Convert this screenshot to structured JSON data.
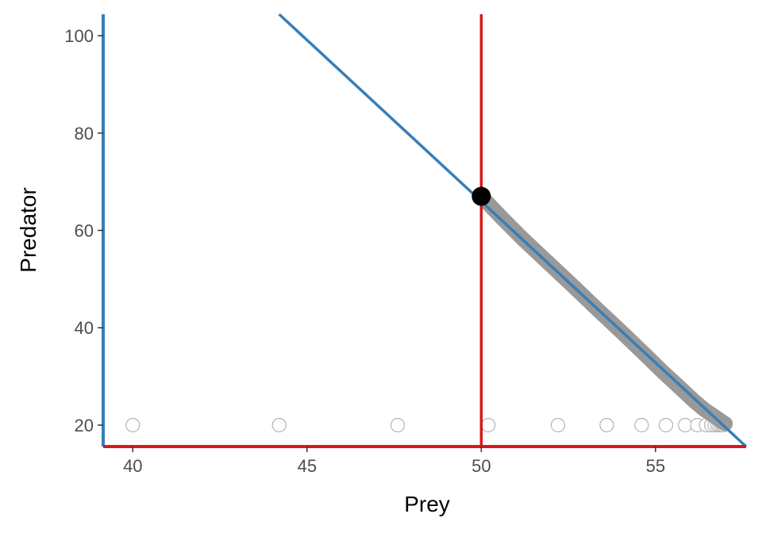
{
  "chart_data": {
    "type": "scatter",
    "title": "",
    "xlabel": "Prey",
    "ylabel": "Predator",
    "xlim": [
      39.15,
      57.6
    ],
    "ylim": [
      15.6,
      104.4
    ],
    "grid": false,
    "x_ticks": [
      40,
      45,
      50,
      55
    ],
    "y_ticks": [
      20,
      40,
      60,
      80,
      100
    ],
    "x_tick_labels": [
      "40",
      "45",
      "50",
      "55"
    ],
    "y_tick_labels": [
      "20",
      "40",
      "60",
      "80",
      "100"
    ],
    "colors": {
      "prey_nullcline": "#d7191c",
      "predator_nullcline": "#377eb8",
      "trajectory": "#999999",
      "equilibrium": "#000000",
      "open_points": "#b3b3b3"
    },
    "prey_nullcline": {
      "x": 50
    },
    "predator_nullcline": {
      "x": [
        44.2,
        57.6
      ],
      "y": [
        104.4,
        15.6
      ]
    },
    "trajectory": {
      "x": [
        50.0,
        50.6,
        51.2,
        51.9,
        52.6,
        53.3,
        54.0,
        54.6,
        55.2,
        55.7,
        56.1,
        56.4,
        56.65,
        56.85,
        56.95,
        57.0
      ],
      "y": [
        67,
        62.5,
        58.2,
        53.5,
        48.8,
        44.0,
        39.3,
        35.2,
        31.0,
        27.7,
        25.0,
        23.2,
        22.0,
        21.0,
        20.5,
        20.3
      ]
    },
    "equilibrium": {
      "x": 50,
      "y": 67
    },
    "open_points": {
      "x": [
        40.0,
        44.2,
        47.6,
        50.2,
        52.2,
        53.6,
        54.6,
        55.3,
        55.85,
        56.2,
        56.45,
        56.6,
        56.7,
        56.78,
        56.84,
        56.9,
        56.95
      ],
      "y": [
        20,
        20,
        20,
        20,
        20,
        20,
        20,
        20,
        20,
        20,
        20,
        20,
        20,
        20,
        20,
        20,
        20
      ]
    }
  }
}
